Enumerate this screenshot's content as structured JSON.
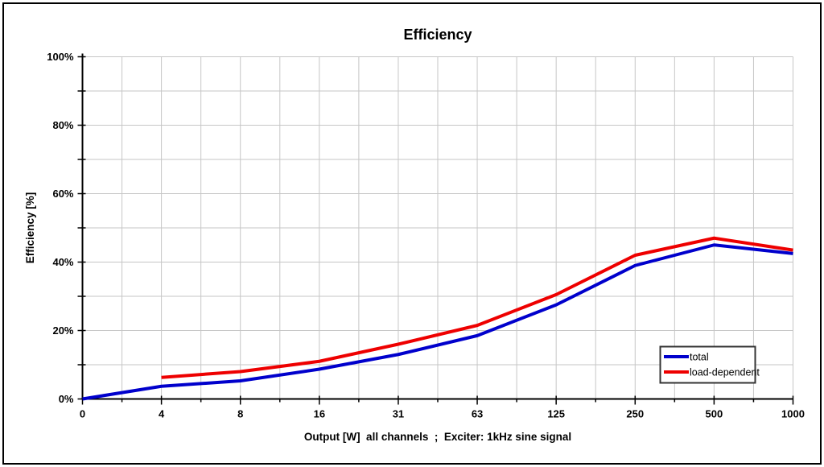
{
  "colors": {
    "background": "#ffffff",
    "frame_border": "#000000",
    "axis": "#000000",
    "gridline": "#c6c6c6",
    "legend_border": "#333333",
    "series_total": "#0000cc",
    "series_load_dependent": "#ee0000"
  },
  "chart_data": {
    "type": "line",
    "title": "Efficiency",
    "xlabel": "Output [W]  all channels  ;  Exciter: 1kHz sine signal",
    "ylabel": "Efficiency [%]",
    "categories": [
      "0",
      "4",
      "8",
      "16",
      "31",
      "63",
      "125",
      "250",
      "500",
      "1000"
    ],
    "x_scale_hint": "categories evenly spaced (output doubles each step)",
    "ylim": [
      0,
      100
    ],
    "y_major_step": 20,
    "y_minor_step": 10,
    "y_tick_suffix": "%",
    "y_tick_labels": [
      "0%",
      "20%",
      "40%",
      "60%",
      "80%",
      "100%"
    ],
    "grid": "major+minor, light gray, on",
    "legend_position": "inside lower-right, boxed",
    "series": [
      {
        "name": "total",
        "color": "#0000cc",
        "values": [
          0,
          3.7,
          5.3,
          8.7,
          13,
          18.5,
          27.5,
          39,
          45,
          42.5
        ]
      },
      {
        "name": "load-dependent",
        "color": "#ee0000",
        "values": [
          null,
          6.3,
          8,
          11,
          16,
          21.5,
          30.5,
          42,
          47,
          43.5
        ]
      }
    ]
  }
}
